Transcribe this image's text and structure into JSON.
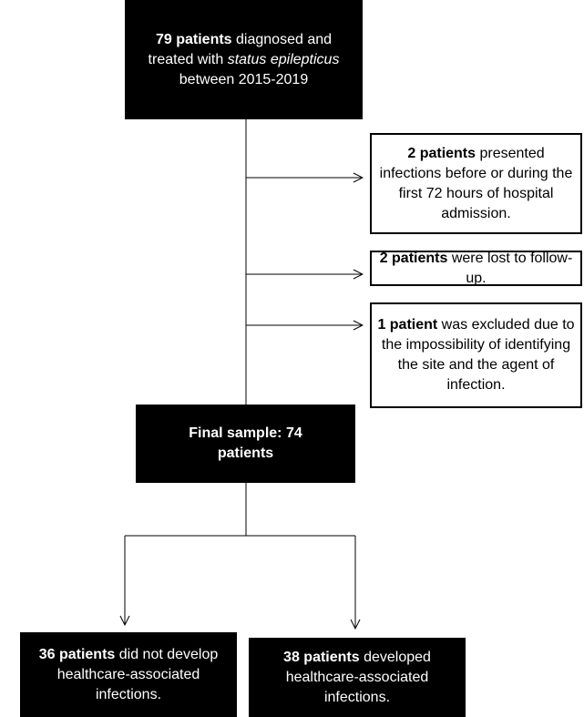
{
  "nodes": [
    {
      "runs": [
        {
          "text": "79 patients",
          "bold": true
        },
        {
          "text": " diagnosed and treated with "
        },
        {
          "text": "status epilepticus",
          "italic": true
        },
        {
          "text": " between 2015-2019"
        }
      ]
    },
    {
      "runs": [
        {
          "text": "2 patients",
          "bold": true
        },
        {
          "text": " presented infections before or during the first 72 hours of hospital admission."
        }
      ]
    },
    {
      "runs": [
        {
          "text": "2 patients",
          "bold": true
        },
        {
          "text": " were lost to follow-up."
        }
      ]
    },
    {
      "runs": [
        {
          "text": "1 patient",
          "bold": true
        },
        {
          "text": " was excluded due to the impossibility of identifying the site and the agent of infection."
        }
      ]
    },
    {
      "runs": [
        {
          "text": "Final sample: 74 patients",
          "bold": true
        }
      ]
    },
    {
      "runs": [
        {
          "text": "36 patients",
          "bold": true
        },
        {
          "text": " did not develop healthcare-associated infections."
        }
      ]
    },
    {
      "runs": [
        {
          "text": "38 patients",
          "bold": true
        },
        {
          "text": " developed healthcare-associated infections."
        }
      ]
    }
  ]
}
